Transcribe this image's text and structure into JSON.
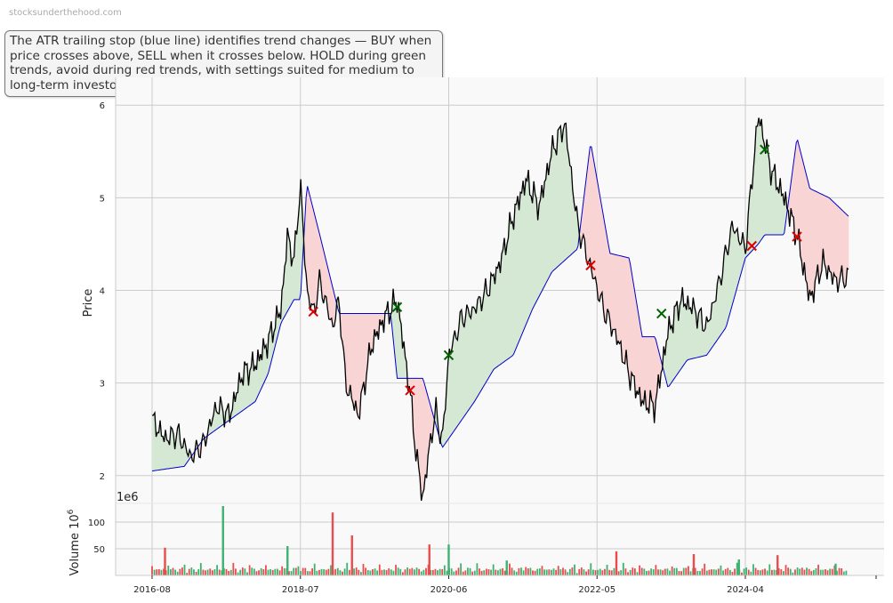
{
  "watermark": "stocksunderthehood.com",
  "annotation": "The ATR trailing stop (blue line) identifies trend changes — BUY when price crosses above, SELL when it crosses below. HOLD during green trends, avoid during red trends, with settings suited for medium to long-term investors.",
  "colors": {
    "price": "#000000",
    "stop": "#0000cc",
    "up_fill": "#d4e8d4",
    "down_fill": "#f9d4d4",
    "buy": "#006400",
    "sell": "#dd0000",
    "vol_up": "#3cb371",
    "vol_down": "#e84c4c",
    "grid": "#cccccc",
    "panel": "#f9f9f9"
  },
  "chart_data": {
    "type": "line",
    "price_panel": {
      "ylabel": "Price",
      "ylim": [
        1.7,
        6.3
      ],
      "yticks": [
        2,
        3,
        4,
        5,
        6
      ],
      "series": [
        {
          "key": "price",
          "x": [
            "2016-08",
            "2016-10",
            "2016-12",
            "2017-02",
            "2017-04",
            "2017-06",
            "2017-08",
            "2017-10",
            "2017-12",
            "2018-02",
            "2018-04",
            "2018-05",
            "2018-06",
            "2018-07",
            "2018-08",
            "2018-09",
            "2018-10",
            "2018-12",
            "2019-01",
            "2019-02",
            "2019-04",
            "2019-06",
            "2019-08",
            "2019-10",
            "2019-12",
            "2020-01",
            "2020-02",
            "2020-03",
            "2020-04",
            "2020-05",
            "2020-06",
            "2020-08",
            "2020-10",
            "2020-12",
            "2021-02",
            "2021-04",
            "2021-06",
            "2021-08",
            "2021-10",
            "2021-12",
            "2022-02",
            "2022-04",
            "2022-06",
            "2022-08",
            "2022-10",
            "2022-12",
            "2023-02",
            "2023-04",
            "2023-06",
            "2023-08",
            "2023-10",
            "2023-12",
            "2024-02",
            "2024-04",
            "2024-06",
            "2024-08",
            "2024-10",
            "2024-12",
            "2025-02",
            "2025-04",
            "2025-06",
            "2025-08"
          ],
          "y": [
            2.6,
            2.4,
            2.45,
            2.2,
            2.35,
            2.75,
            2.65,
            3.1,
            3.2,
            3.45,
            3.8,
            4.6,
            4.3,
            5.15,
            4.0,
            3.75,
            4.1,
            3.6,
            3.9,
            3.0,
            2.65,
            3.4,
            3.7,
            3.9,
            2.9,
            2.2,
            1.75,
            2.3,
            2.7,
            2.35,
            3.3,
            3.7,
            3.8,
            4.0,
            4.3,
            4.8,
            5.2,
            4.9,
            5.5,
            5.8,
            4.7,
            4.25,
            3.8,
            3.5,
            3.1,
            2.8,
            2.75,
            3.55,
            3.9,
            3.8,
            3.6,
            4.1,
            4.7,
            4.45,
            5.9,
            5.3,
            5.0,
            4.6,
            3.9,
            4.3,
            4.1,
            4.15
          ]
        },
        {
          "key": "stop",
          "x": [
            "2016-08",
            "2017-01",
            "2017-04",
            "2017-08",
            "2017-12",
            "2018-02",
            "2018-04",
            "2018-06",
            "2018-07",
            "2018-08",
            "2018-10",
            "2019-01",
            "2019-04",
            "2019-09",
            "2019-10",
            "2019-12",
            "2020-02",
            "2020-05",
            "2020-07",
            "2020-10",
            "2021-01",
            "2021-04",
            "2021-07",
            "2021-10",
            "2022-02",
            "2022-04",
            "2022-07",
            "2022-10",
            "2022-12",
            "2023-02",
            "2023-04",
            "2023-07",
            "2023-10",
            "2024-01",
            "2024-04",
            "2024-06",
            "2024-07",
            "2024-10",
            "2024-12",
            "2025-02",
            "2025-05",
            "2025-08"
          ],
          "y": [
            2.05,
            2.1,
            2.4,
            2.6,
            2.8,
            3.1,
            3.65,
            3.9,
            3.9,
            5.15,
            4.6,
            3.75,
            3.75,
            3.75,
            3.05,
            3.05,
            3.05,
            2.3,
            2.5,
            2.8,
            3.15,
            3.3,
            3.8,
            4.2,
            4.45,
            5.6,
            4.4,
            4.35,
            3.5,
            3.5,
            2.95,
            3.25,
            3.3,
            3.6,
            4.35,
            4.5,
            4.6,
            4.6,
            5.65,
            5.1,
            5.0,
            4.8
          ]
        }
      ],
      "buy_signals": [
        {
          "x": "2019-10",
          "y": 3.82
        },
        {
          "x": "2020-06",
          "y": 3.3
        },
        {
          "x": "2023-03",
          "y": 3.75
        },
        {
          "x": "2024-07",
          "y": 5.52
        }
      ],
      "sell_signals": [
        {
          "x": "2018-09",
          "y": 3.77
        },
        {
          "x": "2019-12",
          "y": 2.92
        },
        {
          "x": "2022-04",
          "y": 4.27
        },
        {
          "x": "2024-05",
          "y": 4.48
        },
        {
          "x": "2024-12",
          "y": 4.58
        }
      ]
    },
    "volume_panel": {
      "ylabel": "Volume",
      "ylabel_exponent": "6",
      "offset_text": "1e6",
      "ylim": [
        0,
        135
      ],
      "yticks": [
        50,
        100
      ],
      "spikes": [
        {
          "x": "2016-10",
          "value": 52,
          "dir": "down"
        },
        {
          "x": "2017-07",
          "value": 130,
          "dir": "up"
        },
        {
          "x": "2018-05",
          "value": 55,
          "dir": "up"
        },
        {
          "x": "2018-12",
          "value": 118,
          "dir": "down"
        },
        {
          "x": "2019-03",
          "value": 75,
          "dir": "down"
        },
        {
          "x": "2020-03",
          "value": 58,
          "dir": "down"
        },
        {
          "x": "2020-06",
          "value": 58,
          "dir": "up"
        },
        {
          "x": "2021-03",
          "value": 28,
          "dir": "up"
        },
        {
          "x": "2022-08",
          "value": 45,
          "dir": "down"
        },
        {
          "x": "2023-08",
          "value": 40,
          "dir": "down"
        },
        {
          "x": "2024-03",
          "value": 30,
          "dir": "up"
        },
        {
          "x": "2024-09",
          "value": 38,
          "dir": "down"
        },
        {
          "x": "2025-06",
          "value": 22,
          "dir": "up"
        }
      ]
    },
    "x_ticks": [
      "2016-08",
      "2018-07",
      "2020-06",
      "2022-05",
      "2024-04"
    ],
    "grid": true
  }
}
